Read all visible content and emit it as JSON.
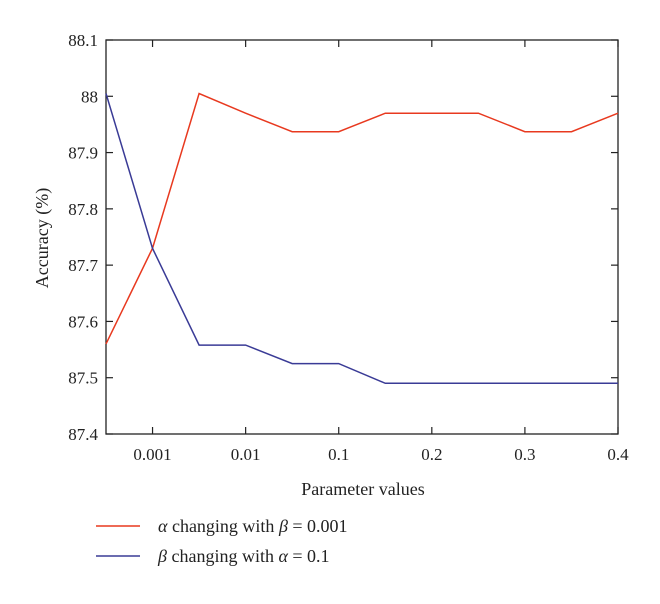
{
  "chart_data": {
    "type": "line",
    "xlabel": "Parameter values",
    "ylabel": "Accuracy (%)",
    "categories": [
      "0.0005",
      "0.001",
      "0.005",
      "0.01",
      "0.05",
      "0.1",
      "0.15",
      "0.2",
      "0.25",
      "0.3",
      "0.35",
      "0.4"
    ],
    "x_tick_labels": [
      "0.001",
      "0.01",
      "0.1",
      "0.2",
      "0.3",
      "0.4"
    ],
    "x_tick_categories": [
      "0.001",
      "0.01",
      "0.1",
      "0.2",
      "0.3",
      "0.4"
    ],
    "y_tick_labels": [
      "87.4",
      "87.5",
      "87.6",
      "87.7",
      "87.8",
      "87.9",
      "88",
      "88.1"
    ],
    "ylim": [
      87.4,
      88.1
    ],
    "grid": false,
    "legend_position": "bottom",
    "series": [
      {
        "name": "α changing with β = 0.001",
        "color": "#e8391f",
        "values": [
          87.56,
          87.73,
          88.005,
          87.97,
          87.937,
          87.937,
          87.97,
          87.97,
          87.97,
          87.937,
          87.937,
          87.97
        ]
      },
      {
        "name": "β changing with α = 0.1",
        "color": "#3a3b96",
        "values": [
          88.005,
          87.73,
          87.558,
          87.558,
          87.525,
          87.525,
          87.49,
          87.49,
          87.49,
          87.49,
          87.49,
          87.49
        ]
      }
    ]
  },
  "legend": {
    "items": [
      {
        "symbol": "α",
        "text1": " changing with ",
        "symbol2": "β",
        "text2": " = 0.001"
      },
      {
        "symbol": "β",
        "text1": " changing with ",
        "symbol2": "α",
        "text2": " = 0.1"
      }
    ]
  }
}
